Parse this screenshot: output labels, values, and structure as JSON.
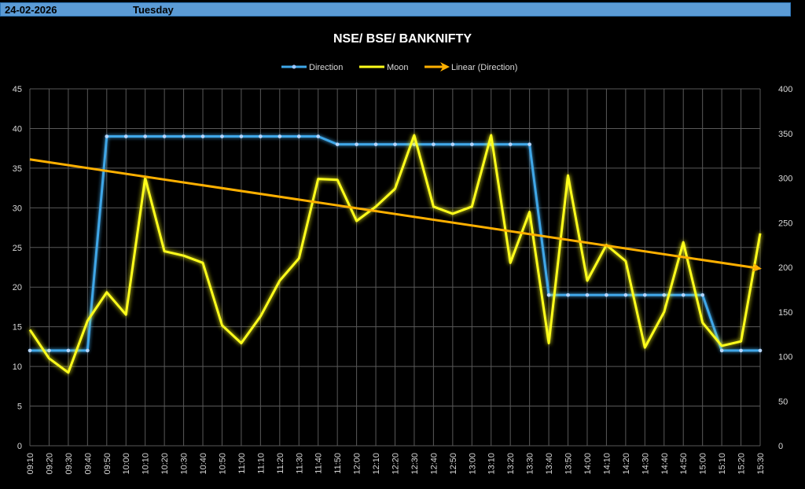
{
  "header": {
    "date": "24-02-2026",
    "day": "Tuesday"
  },
  "colors": {
    "direction": "#3fa7e8",
    "moon": "#ffff1a",
    "trend": "#ffb000",
    "grid": "#595959",
    "axis_text": "#d9d9d9"
  },
  "chart_data": {
    "type": "line",
    "title": "NSE/ BSE/ BANKNIFTY",
    "legend": [
      "Direction",
      "Moon",
      "Linear (Direction)"
    ],
    "legend_position": "top",
    "grid": true,
    "x": [
      "09:10",
      "09:20",
      "09:30",
      "09:40",
      "09:50",
      "10:00",
      "10:10",
      "10:20",
      "10:30",
      "10:40",
      "10:50",
      "11:00",
      "11:10",
      "11:20",
      "11:30",
      "11:40",
      "11:50",
      "12:00",
      "12:10",
      "12:20",
      "12:30",
      "12:40",
      "12:50",
      "13:00",
      "13:10",
      "13:20",
      "13:30",
      "13:40",
      "13:50",
      "14:00",
      "14:10",
      "14:20",
      "14:30",
      "14:40",
      "14:50",
      "15:00",
      "15:10",
      "15:20",
      "15:30"
    ],
    "y_left": {
      "min": 0,
      "max": 45,
      "ticks": [
        0,
        5,
        10,
        15,
        20,
        25,
        30,
        35,
        40,
        45
      ]
    },
    "y_right": {
      "min": 0,
      "max": 400,
      "ticks": [
        0,
        50,
        100,
        150,
        200,
        250,
        300,
        350,
        400
      ]
    },
    "series": [
      {
        "name": "Direction",
        "axis": "left",
        "values": [
          12,
          12,
          12,
          12,
          39,
          39,
          39,
          39,
          39,
          39,
          39,
          39,
          39,
          39,
          39,
          39,
          38,
          38,
          38,
          38,
          38,
          38,
          38,
          38,
          38,
          38,
          38,
          19,
          19,
          19,
          19,
          19,
          19,
          19,
          19,
          19,
          12,
          12,
          12
        ]
      },
      {
        "name": "Moon",
        "axis": "right",
        "values": [
          130,
          98,
          82,
          140,
          172,
          147,
          300,
          218,
          213,
          205,
          135,
          115,
          145,
          185,
          210,
          299,
          298,
          252,
          268,
          288,
          348,
          268,
          260,
          268,
          348,
          205,
          262,
          115,
          303,
          185,
          225,
          207,
          110,
          150,
          228,
          138,
          112,
          117,
          238
        ]
      },
      {
        "name": "Linear (Direction)",
        "axis": "left",
        "type": "trend",
        "start": 36.1,
        "end": 22.4
      }
    ]
  }
}
